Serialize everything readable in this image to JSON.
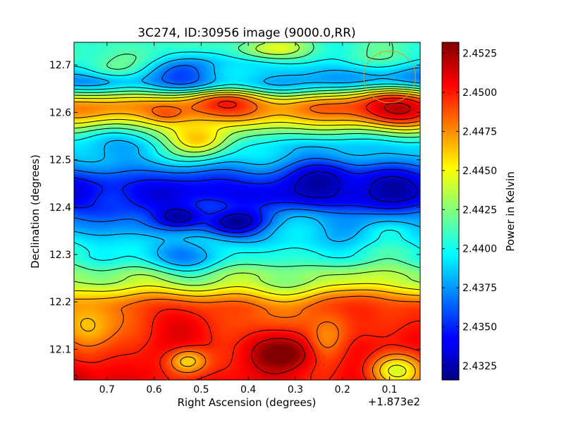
{
  "chart_data": {
    "type": "heatmap",
    "title": "3C274, ID:30956 image (9000.0,RR)",
    "xlabel": "Right Ascension (degrees)",
    "ylabel": "Declination (degrees)",
    "x_offset_label": "+1.873e2",
    "colorbar_label": "Power in Kelvin",
    "xlim": [
      0.77,
      0.035
    ],
    "ylim": [
      12.035,
      12.748
    ],
    "x_ticks": [
      0.7,
      0.6,
      0.5,
      0.4,
      0.3,
      0.2,
      0.1
    ],
    "x_tick_labels": [
      "0.7",
      "0.6",
      "0.5",
      "0.4",
      "0.3",
      "0.2",
      "0.1"
    ],
    "y_ticks": [
      12.1,
      12.2,
      12.3,
      12.4,
      12.5,
      12.6,
      12.7
    ],
    "y_tick_labels": [
      "12.1",
      "12.2",
      "12.3",
      "12.4",
      "12.5",
      "12.6",
      "12.7"
    ],
    "color_range": [
      2.4316,
      2.4532
    ],
    "colorbar_ticks": [
      2.4325,
      2.435,
      2.4375,
      2.44,
      2.4425,
      2.445,
      2.4475,
      2.45,
      2.4525
    ],
    "colorbar_tick_labels": [
      "2.4325",
      "2.4350",
      "2.4375",
      "2.4400",
      "2.4425",
      "2.4450",
      "2.4475",
      "2.4500",
      "2.4525"
    ],
    "colormap": "jet",
    "contour_color": "#000000",
    "contour_count": 12,
    "grid": false,
    "beam_marker": {
      "ra": 0.1,
      "dec": 12.675,
      "color": "#d4a017"
    },
    "band_centers_dec": [
      12.72,
      12.67,
      12.61,
      12.52,
      12.43,
      12.37,
      12.3,
      12.25,
      12.18,
      12.1
    ],
    "band_base_values": [
      2.441,
      2.4372,
      2.4475,
      2.4385,
      2.434,
      2.4378,
      2.4405,
      2.443,
      2.4485,
      2.4505
    ],
    "features": [
      {
        "ra": 0.5,
        "dec": 12.685,
        "value": 2.4345,
        "spread_ra": 0.07,
        "spread_dec": 0.022
      },
      {
        "ra": 0.4,
        "dec": 12.69,
        "value": 2.439,
        "spread_ra": 0.1,
        "spread_dec": 0.03
      },
      {
        "ra": 0.7,
        "dec": 12.7,
        "value": 2.442,
        "spread_ra": 0.05,
        "spread_dec": 0.02
      },
      {
        "ra": 0.35,
        "dec": 12.735,
        "value": 2.444,
        "spread_ra": 0.06,
        "spread_dec": 0.015
      },
      {
        "ra": 0.1,
        "dec": 12.61,
        "value": 2.452,
        "spread_ra": 0.06,
        "spread_dec": 0.025
      },
      {
        "ra": 0.45,
        "dec": 12.615,
        "value": 2.4495,
        "spread_ra": 0.07,
        "spread_dec": 0.02
      },
      {
        "ra": 0.57,
        "dec": 12.6,
        "value": 2.449,
        "spread_ra": 0.03,
        "spread_dec": 0.012
      },
      {
        "ra": 0.5,
        "dec": 12.545,
        "value": 2.4465,
        "spread_ra": 0.05,
        "spread_dec": 0.03
      },
      {
        "ra": 0.72,
        "dec": 12.52,
        "value": 2.4385,
        "spread_ra": 0.05,
        "spread_dec": 0.03
      },
      {
        "ra": 0.54,
        "dec": 12.38,
        "value": 2.4322,
        "spread_ra": 0.04,
        "spread_dec": 0.018
      },
      {
        "ra": 0.43,
        "dec": 12.368,
        "value": 2.4318,
        "spread_ra": 0.05,
        "spread_dec": 0.02
      },
      {
        "ra": 0.23,
        "dec": 12.45,
        "value": 2.4326,
        "spread_ra": 0.05,
        "spread_dec": 0.028
      },
      {
        "ra": 0.12,
        "dec": 12.44,
        "value": 2.4328,
        "spread_ra": 0.05,
        "spread_dec": 0.028
      },
      {
        "ra": 0.7,
        "dec": 12.405,
        "value": 2.4345,
        "spread_ra": 0.05,
        "spread_dec": 0.03
      },
      {
        "ra": 0.29,
        "dec": 12.34,
        "value": 2.4385,
        "spread_ra": 0.07,
        "spread_dec": 0.025
      },
      {
        "ra": 0.1,
        "dec": 12.345,
        "value": 2.4395,
        "spread_ra": 0.04,
        "spread_dec": 0.015
      },
      {
        "ra": 0.55,
        "dec": 12.3,
        "value": 2.437,
        "spread_ra": 0.06,
        "spread_dec": 0.025
      },
      {
        "ra": 0.32,
        "dec": 12.09,
        "value": 2.4532,
        "spread_ra": 0.05,
        "spread_dec": 0.022
      },
      {
        "ra": 0.56,
        "dec": 12.15,
        "value": 2.4505,
        "spread_ra": 0.07,
        "spread_dec": 0.04
      },
      {
        "ra": 0.14,
        "dec": 12.17,
        "value": 2.4505,
        "spread_ra": 0.05,
        "spread_dec": 0.04
      },
      {
        "ra": 0.77,
        "dec": 12.04,
        "value": 2.4525,
        "spread_ra": 0.03,
        "spread_dec": 0.02
      },
      {
        "ra": 0.53,
        "dec": 12.075,
        "value": 2.4455,
        "spread_ra": 0.03,
        "spread_dec": 0.02
      },
      {
        "ra": 0.09,
        "dec": 12.055,
        "value": 2.4445,
        "spread_ra": 0.04,
        "spread_dec": 0.025
      },
      {
        "ra": 0.74,
        "dec": 12.15,
        "value": 2.4455,
        "spread_ra": 0.04,
        "spread_dec": 0.04
      },
      {
        "ra": 0.23,
        "dec": 12.14,
        "value": 2.4475,
        "spread_ra": 0.03,
        "spread_dec": 0.04
      }
    ]
  }
}
